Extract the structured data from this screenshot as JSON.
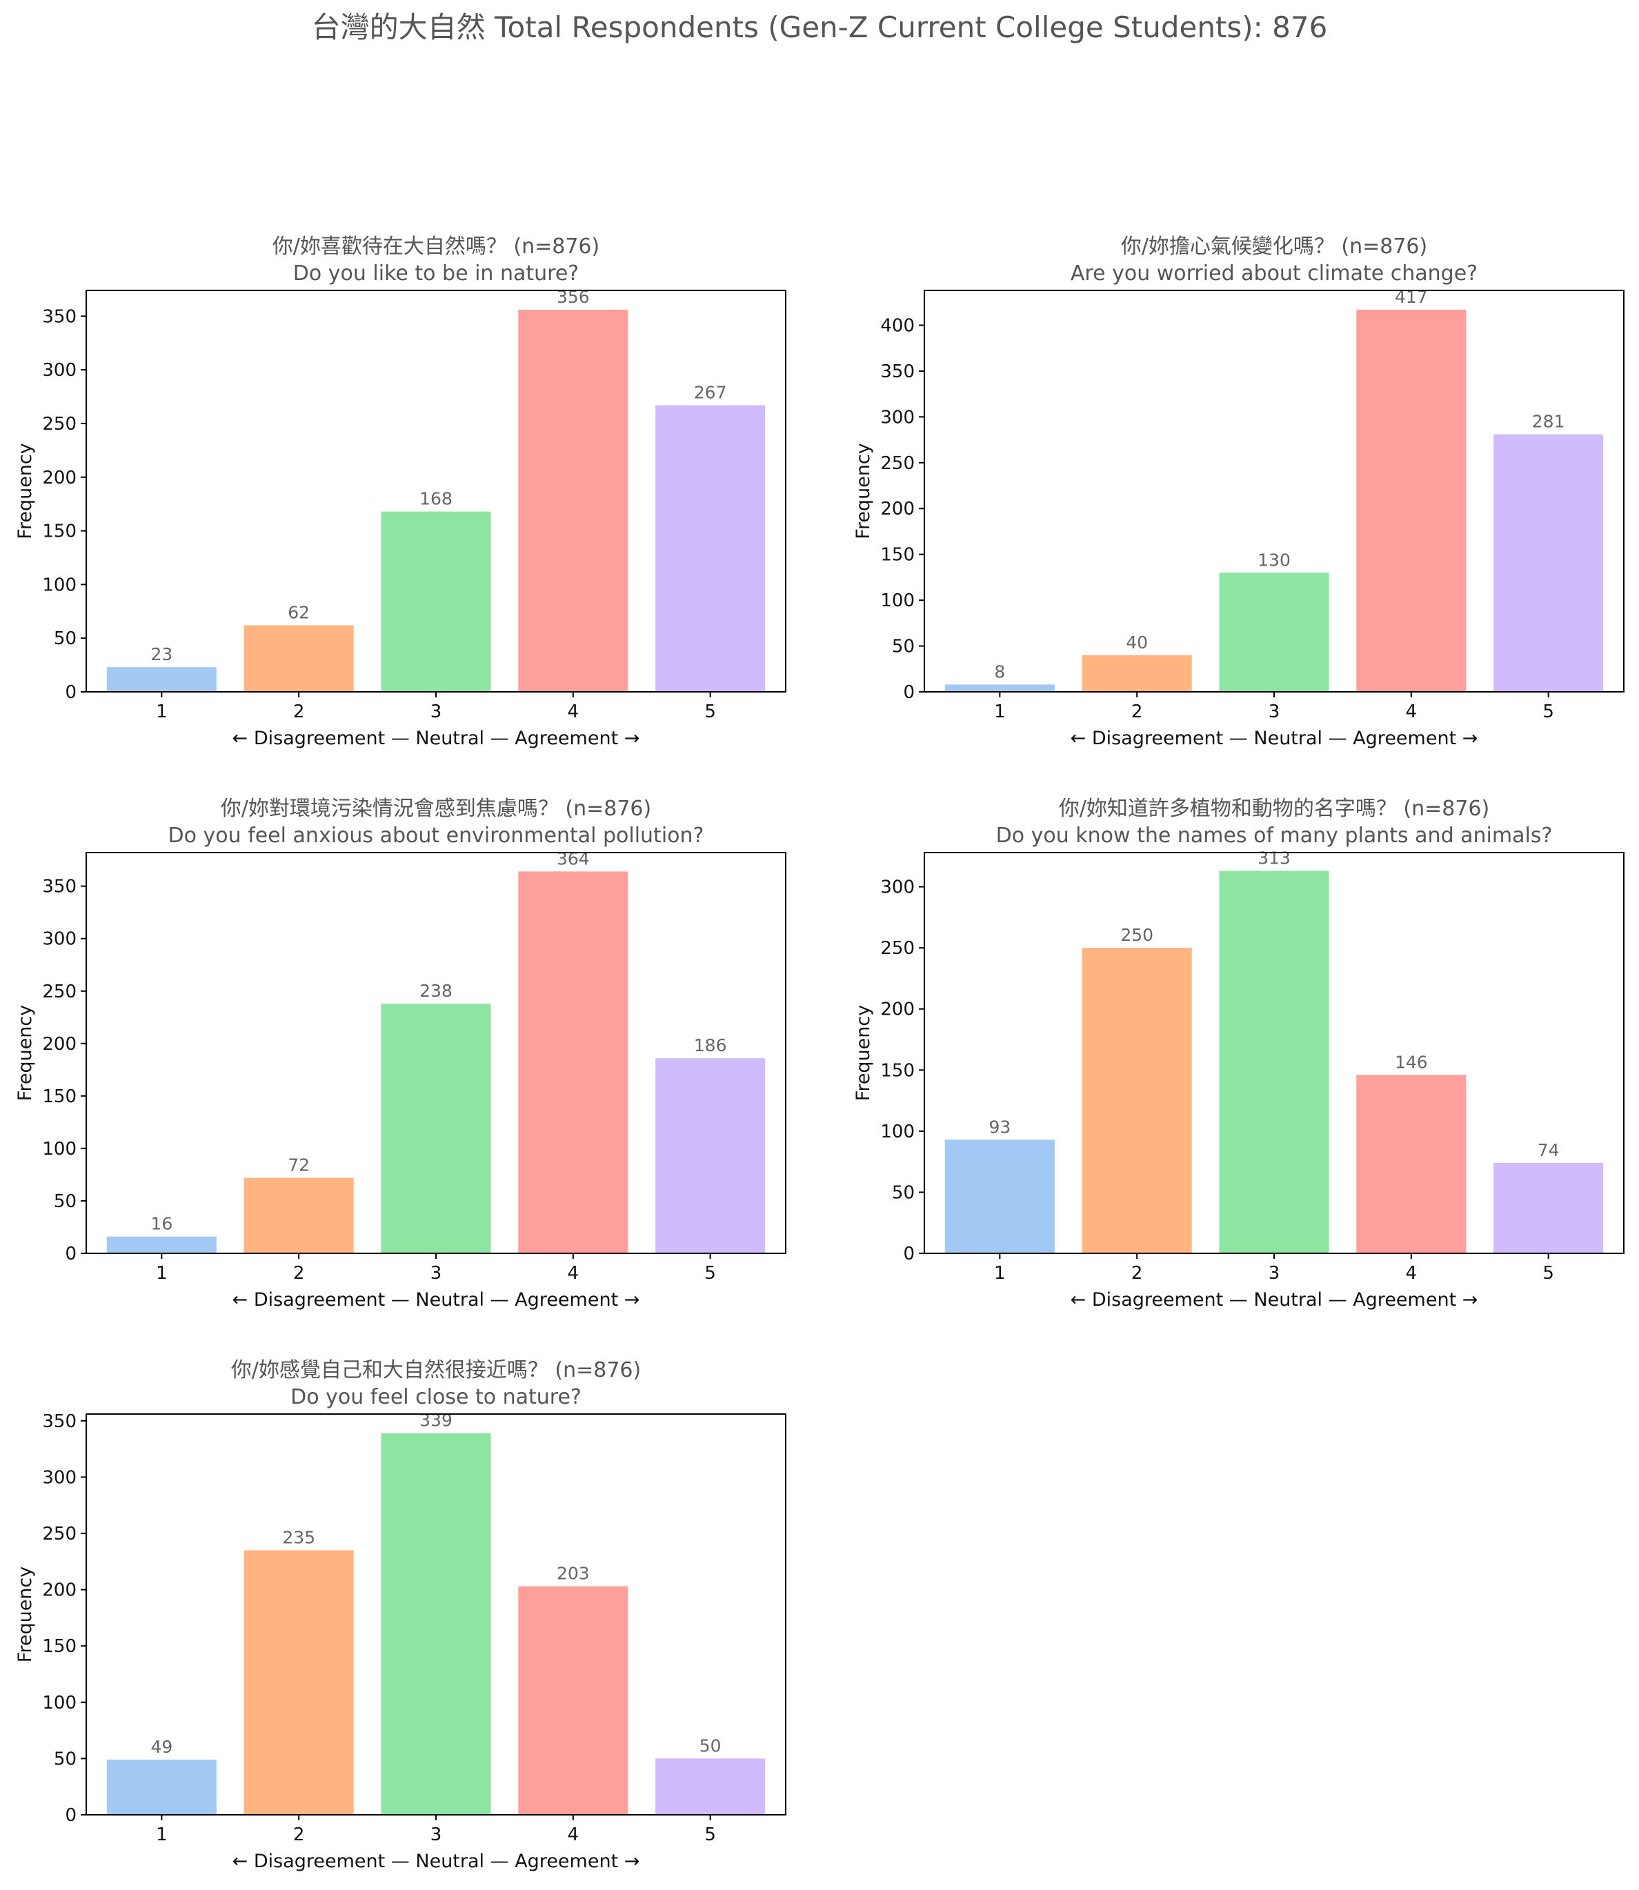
{
  "figure": {
    "title": "台灣的大自然  Total Respondents (Gen-Z Current College Students): 876"
  },
  "chart_data": [
    {
      "type": "bar",
      "title": "你/妳喜歡待在大自然嗎？ (n=876)",
      "subtitle": "Do you like to be in nature?",
      "xlabel": "← Disagreement — Neutral — Agreement →",
      "ylabel": "Frequency",
      "categories": [
        "1",
        "2",
        "3",
        "4",
        "5"
      ],
      "values": [
        23,
        62,
        168,
        356,
        267
      ],
      "ylim": [
        0,
        374
      ],
      "yticks": [
        0,
        50,
        100,
        150,
        200,
        250,
        300,
        350
      ],
      "grid": false,
      "colors": [
        "#a1c9f4",
        "#ffb482",
        "#8de5a1",
        "#ff9f9b",
        "#d0bbff"
      ]
    },
    {
      "type": "bar",
      "title": "你/妳擔心氣候變化嗎？ (n=876)",
      "subtitle": "Are you worried about climate change?",
      "xlabel": "← Disagreement — Neutral — Agreement →",
      "ylabel": "Frequency",
      "categories": [
        "1",
        "2",
        "3",
        "4",
        "5"
      ],
      "values": [
        8,
        40,
        130,
        417,
        281
      ],
      "ylim": [
        0,
        438
      ],
      "yticks": [
        0,
        50,
        100,
        150,
        200,
        250,
        300,
        350,
        400
      ],
      "grid": false,
      "colors": [
        "#a1c9f4",
        "#ffb482",
        "#8de5a1",
        "#ff9f9b",
        "#d0bbff"
      ]
    },
    {
      "type": "bar",
      "title": "你/妳對環境污染情況會感到焦慮嗎？ (n=876)",
      "subtitle": "Do you feel anxious about environmental pollution?",
      "xlabel": "← Disagreement — Neutral — Agreement →",
      "ylabel": "Frequency",
      "categories": [
        "1",
        "2",
        "3",
        "4",
        "5"
      ],
      "values": [
        16,
        72,
        238,
        364,
        186
      ],
      "ylim": [
        0,
        382
      ],
      "yticks": [
        0,
        50,
        100,
        150,
        200,
        250,
        300,
        350
      ],
      "grid": false,
      "colors": [
        "#a1c9f4",
        "#ffb482",
        "#8de5a1",
        "#ff9f9b",
        "#d0bbff"
      ]
    },
    {
      "type": "bar",
      "title": "你/妳知道許多植物和動物的名字嗎？ (n=876)",
      "subtitle": "Do you know the names of many plants and animals?",
      "xlabel": "← Disagreement — Neutral — Agreement →",
      "ylabel": "Frequency",
      "categories": [
        "1",
        "2",
        "3",
        "4",
        "5"
      ],
      "values": [
        93,
        250,
        313,
        146,
        74
      ],
      "ylim": [
        0,
        328
      ],
      "yticks": [
        0,
        50,
        100,
        150,
        200,
        250,
        300
      ],
      "grid": false,
      "colors": [
        "#a1c9f4",
        "#ffb482",
        "#8de5a1",
        "#ff9f9b",
        "#d0bbff"
      ]
    },
    {
      "type": "bar",
      "title": "你/妳感覺自己和大自然很接近嗎？ (n=876)",
      "subtitle": "Do you feel close to nature?",
      "xlabel": "← Disagreement — Neutral — Agreement →",
      "ylabel": "Frequency",
      "categories": [
        "1",
        "2",
        "3",
        "4",
        "5"
      ],
      "values": [
        49,
        235,
        339,
        203,
        50
      ],
      "ylim": [
        0,
        356
      ],
      "yticks": [
        0,
        50,
        100,
        150,
        200,
        250,
        300,
        350
      ],
      "grid": false,
      "colors": [
        "#a1c9f4",
        "#ffb482",
        "#8de5a1",
        "#ff9f9b",
        "#d0bbff"
      ]
    }
  ]
}
